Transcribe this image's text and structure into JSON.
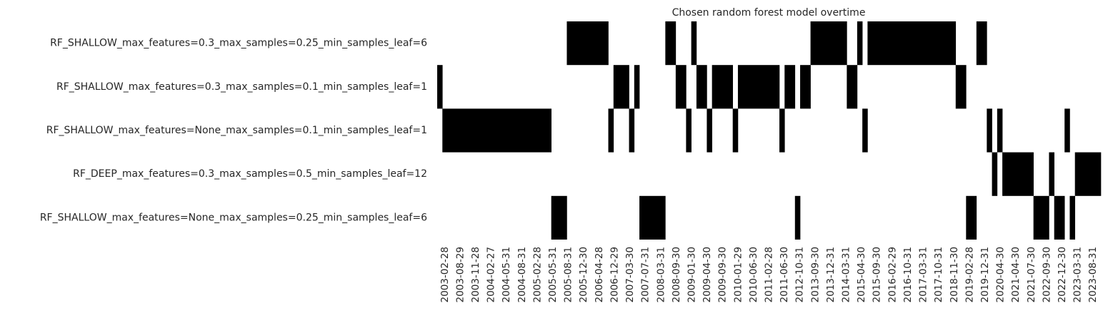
{
  "chart_data": {
    "type": "heatmap",
    "title": "Chosen random forest model overtime",
    "colors": {
      "selected": "#000000",
      "not_selected": "#ffffff"
    },
    "rows": [
      "RF_SHALLOW_max_features=0.3_max_samples=0.25_min_samples_leaf=6",
      "RF_SHALLOW_max_features=0.3_max_samples=0.1_min_samples_leaf=1",
      "RF_SHALLOW_max_features=None_max_samples=0.1_min_samples_leaf=1",
      "RF_DEEP_max_features=0.3_max_samples=0.5_min_samples_leaf=12",
      "RF_SHALLOW_max_features=None_max_samples=0.25_min_samples_leaf=6"
    ],
    "x_tick_labels": [
      "2003-02-28",
      "2003-08-29",
      "2003-11-28",
      "2004-02-27",
      "2004-05-31",
      "2004-08-31",
      "2005-02-28",
      "2005-05-31",
      "2005-08-31",
      "2005-12-30",
      "2006-04-28",
      "2006-12-29",
      "2007-03-30",
      "2007-07-31",
      "2008-03-31",
      "2008-09-30",
      "2009-01-30",
      "2009-04-30",
      "2009-09-30",
      "2010-01-29",
      "2010-06-30",
      "2011-02-28",
      "2011-06-30",
      "2012-10-31",
      "2013-09-30",
      "2013-12-31",
      "2014-03-31",
      "2015-04-30",
      "2015-09-30",
      "2016-02-29",
      "2016-10-31",
      "2017-03-31",
      "2017-10-31",
      "2018-11-30",
      "2019-02-28",
      "2019-12-31",
      "2020-04-30",
      "2021-04-30",
      "2021-07-30",
      "2022-09-30",
      "2022-12-30",
      "2023-03-31",
      "2023-08-31"
    ],
    "n_periods": 128,
    "selected_row_by_period": [
      1,
      2,
      2,
      2,
      2,
      2,
      2,
      2,
      2,
      2,
      2,
      2,
      2,
      2,
      2,
      2,
      2,
      2,
      2,
      2,
      2,
      2,
      4,
      4,
      4,
      0,
      0,
      0,
      0,
      0,
      0,
      0,
      0,
      2,
      1,
      1,
      1,
      2,
      1,
      4,
      4,
      4,
      4,
      4,
      0,
      0,
      1,
      1,
      2,
      0,
      1,
      1,
      2,
      1,
      1,
      1,
      1,
      2,
      1,
      1,
      1,
      1,
      1,
      1,
      1,
      1,
      2,
      1,
      1,
      4,
      1,
      1,
      0,
      0,
      0,
      0,
      0,
      0,
      0,
      1,
      1,
      0,
      2,
      0,
      0,
      0,
      0,
      0,
      0,
      0,
      0,
      0,
      0,
      0,
      0,
      0,
      0,
      0,
      0,
      0,
      1,
      1,
      4,
      4,
      0,
      0,
      2,
      3,
      2,
      3,
      3,
      3,
      3,
      3,
      3,
      4,
      4,
      4,
      3,
      4,
      4,
      2,
      4,
      3,
      3,
      3,
      3,
      3
    ]
  }
}
